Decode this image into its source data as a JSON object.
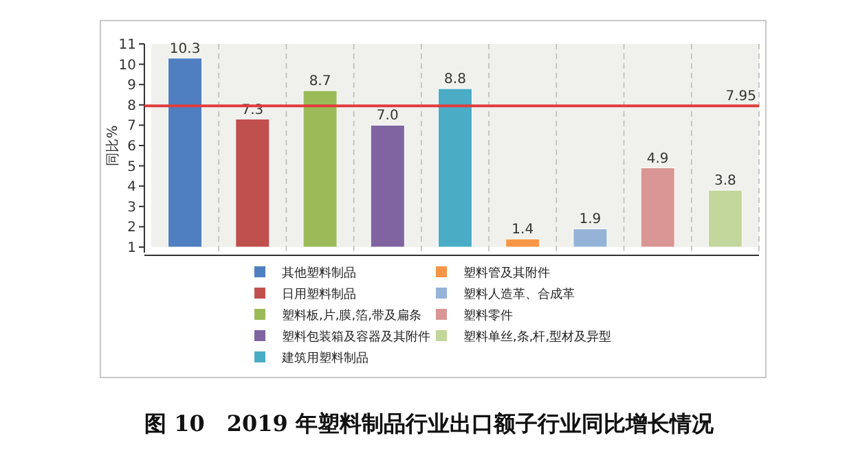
{
  "chart_data": {
    "type": "bar",
    "title": "图 10　2019 年塑料制品行业出口额子行业同比增长情况",
    "ylabel": "同比%",
    "categories": [
      null,
      null,
      null,
      null,
      null,
      null,
      null,
      null,
      null
    ],
    "series": [
      {
        "name": "其他塑料制品",
        "color": "#4f7fc0",
        "values": [
          10.3,
          null,
          null,
          null,
          null,
          null,
          null,
          null,
          null
        ],
        "value_labels": [
          "10.3",
          null,
          null,
          null,
          null,
          null,
          null,
          null,
          null
        ]
      },
      {
        "name": "日用塑料制品",
        "color": "#c0504d",
        "values": [
          null,
          7.3,
          null,
          null,
          null,
          null,
          null,
          null,
          null
        ],
        "value_labels": [
          null,
          "7.3",
          null,
          null,
          null,
          null,
          null,
          null,
          null
        ]
      },
      {
        "name": "塑料板,片,膜,箔,带及扁条",
        "color": "#9bbb59",
        "values": [
          null,
          null,
          8.7,
          null,
          null,
          null,
          null,
          null,
          null
        ],
        "value_labels": [
          null,
          null,
          "8.7",
          null,
          null,
          null,
          null,
          null,
          null
        ]
      },
      {
        "name": "塑料包装箱及容器及其附件",
        "color": "#8064a2",
        "values": [
          null,
          null,
          null,
          7,
          null,
          null,
          null,
          null,
          null
        ],
        "value_labels": [
          null,
          null,
          null,
          "7.0",
          null,
          null,
          null,
          null,
          null
        ]
      },
      {
        "name": "建筑用塑料制品",
        "color": "#4bacc6",
        "values": [
          null,
          null,
          null,
          null,
          8.8,
          null,
          null,
          null,
          null
        ],
        "value_labels": [
          null,
          null,
          null,
          null,
          "8.8",
          null,
          null,
          null,
          null
        ]
      },
      {
        "name": "塑料管及其附件",
        "color": "#f79646",
        "values": [
          null,
          null,
          null,
          null,
          null,
          1.4,
          null,
          null,
          null
        ],
        "value_labels": [
          null,
          null,
          null,
          null,
          null,
          "1.4",
          null,
          null,
          null
        ]
      },
      {
        "name": "塑料人造革、合成革",
        "color": "#95b3d7",
        "values": [
          null,
          null,
          null,
          null,
          null,
          null,
          1.9,
          null,
          null
        ],
        "value_labels": [
          null,
          null,
          null,
          null,
          null,
          null,
          "1.9",
          null,
          null
        ]
      },
      {
        "name": "塑料零件",
        "color": "#d99694",
        "values": [
          null,
          null,
          null,
          null,
          null,
          null,
          null,
          4.9,
          null
        ],
        "value_labels": [
          null,
          null,
          null,
          null,
          null,
          null,
          null,
          "4.9",
          null
        ]
      },
      {
        "name": "塑料单丝,条,杆,型材及异型",
        "color": "#c3d69b",
        "values": [
          null,
          null,
          null,
          null,
          null,
          null,
          null,
          null,
          3.8
        ],
        "value_labels": [
          null,
          null,
          null,
          null,
          null,
          null,
          null,
          null,
          "3.8"
        ]
      }
    ],
    "ylim": [
      1,
      11
    ],
    "yticks": [
      1,
      2,
      3,
      4,
      5,
      6,
      7,
      8,
      9,
      10,
      11
    ],
    "ref_lines": [
      {
        "axis": "y",
        "value": 7.95,
        "label": "7.95",
        "color": "#e03c3c"
      }
    ],
    "grid": "x",
    "legend": "bottom"
  }
}
